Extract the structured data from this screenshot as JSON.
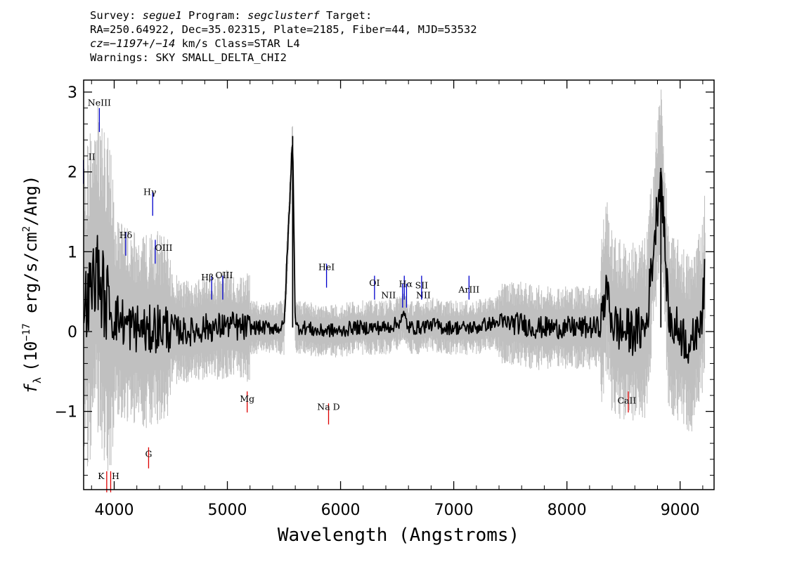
{
  "header": {
    "survey_label": "Survey:",
    "survey": "segue1",
    "program_label": "Program:",
    "program": "segclusterf",
    "target_label": "Target:",
    "line2": "RA=250.64922, Dec=35.02315, Plate=2185, Fiber=44, MJD=53532",
    "cz_label": "cz=",
    "cz_value": "−1197",
    "cz_pm": "+/−",
    "cz_err": "14",
    "cz_tail": " km/s Class=STAR L4",
    "line4": "Warnings: SKY SMALL_DELTA_CHI2"
  },
  "chart_data": {
    "type": "line",
    "xlabel": "Wavelength (Angstroms)",
    "ylabel": "f_λ (10^-17 erg/s/cm^2/Ang)",
    "ylabel_parts": {
      "f": "f",
      "sub": "λ",
      "pre": "(10",
      "exp": "−17",
      "mid": " erg/s/cm",
      "exp2": "2",
      "post": "/Ang)"
    },
    "xlim": [
      3730,
      9300
    ],
    "ylim": [
      -1.98,
      3.15
    ],
    "xticks": [
      4000,
      5000,
      6000,
      7000,
      8000,
      9000
    ],
    "xtick_labels": [
      "4000",
      "5000",
      "6000",
      "7000",
      "8000",
      "9000"
    ],
    "yticks": [
      -1,
      0,
      1,
      2,
      3
    ],
    "ytick_labels": [
      "−1",
      "0",
      "1",
      "2",
      "3"
    ],
    "grid": false,
    "colors": {
      "spectrum": "#000000",
      "noise": "#c0c0c0",
      "emission": "#0000cc",
      "absorption": "#dd0000"
    },
    "series": [
      {
        "x": [
          3760,
          3800,
          3840,
          3880,
          3920,
          3960,
          4000,
          4050,
          4100,
          4150,
          4200,
          4250,
          4300,
          4350,
          4400,
          4500,
          4600,
          4700,
          4800,
          4900,
          5000,
          5100,
          5200,
          5300,
          5400,
          5500,
          5577,
          5600,
          5700,
          5800,
          5890,
          6000,
          6100,
          6200,
          6300,
          6400,
          6500,
          6563,
          6600,
          6700,
          6800,
          6900,
          7000,
          7100,
          7200,
          7300,
          7400,
          7500,
          7600,
          7700,
          7800,
          7900,
          8000,
          8100,
          8200,
          8300,
          8350,
          8400,
          8500,
          8600,
          8700,
          8830,
          8900,
          9000,
          9100,
          9150,
          9200,
          9220
        ],
        "y": [
          0.3,
          0.5,
          0.9,
          0.6,
          0.4,
          0.3,
          0.2,
          0.15,
          0.1,
          0.05,
          0.05,
          0.0,
          0.0,
          0.05,
          0.05,
          0.05,
          0.0,
          0.0,
          0.05,
          0.05,
          0.1,
          0.05,
          0.05,
          0.05,
          0.05,
          0.05,
          2.45,
          0.05,
          0.05,
          0.0,
          0.02,
          0.0,
          0.05,
          0.05,
          0.05,
          0.05,
          0.1,
          0.2,
          0.05,
          0.05,
          0.1,
          0.05,
          0.05,
          0.05,
          0.05,
          0.1,
          0.1,
          0.1,
          0.1,
          0.05,
          0.05,
          0.05,
          0.05,
          0.05,
          0.05,
          0.05,
          0.6,
          0.1,
          0.0,
          0.0,
          0.05,
          2.05,
          0.1,
          0.0,
          -0.2,
          0.1,
          0.3,
          0.7
        ]
      }
    ],
    "annotations": [
      {
        "label": "NeIII",
        "x": 3869,
        "y": 2.5,
        "color": "emission",
        "ty": 2.83,
        "dx": 0
      },
      {
        "label": "II",
        "x": 3728,
        "y": 1.85,
        "color": "emission",
        "ty": 2.15,
        "dx": 12
      },
      {
        "label": "Hγ",
        "x": 4340,
        "y": 1.45,
        "color": "emission",
        "ty": 1.71,
        "dx": -4
      },
      {
        "label": "Hδ",
        "x": 4102,
        "y": 0.95,
        "color": "emission",
        "ty": 1.17,
        "dx": 0
      },
      {
        "label": "OIII",
        "x": 4363,
        "y": 0.85,
        "color": "emission",
        "ty": 1.01,
        "dx": 12
      },
      {
        "label": "Hβ",
        "x": 4861,
        "y": 0.4,
        "color": "emission",
        "ty": 0.64,
        "dx": -6
      },
      {
        "label": "OIII",
        "x": 4959,
        "y": 0.4,
        "color": "emission",
        "ty": 0.67,
        "dx": 2
      },
      {
        "label": "HeI",
        "x": 5876,
        "y": 0.55,
        "color": "emission",
        "ty": 0.77,
        "dx": 0
      },
      {
        "label": "OI",
        "x": 6300,
        "y": 0.4,
        "color": "emission",
        "ty": 0.57,
        "dx": 0
      },
      {
        "label": "NII",
        "x": 6548,
        "y": 0.3,
        "color": "emission",
        "ty": 0.42,
        "dx": -20
      },
      {
        "label": "Hα",
        "x": 6563,
        "y": 0.4,
        "color": "emission",
        "ty": 0.56,
        "dx": 2
      },
      {
        "label": "NII",
        "x": 6583,
        "y": 0.3,
        "color": "emission",
        "ty": 0.42,
        "dx": 24
      },
      {
        "label": "SII",
        "x": 6716,
        "y": 0.4,
        "color": "emission",
        "ty": 0.54,
        "dx": 0
      },
      {
        "label": "ArIII",
        "x": 7135,
        "y": 0.4,
        "color": "emission",
        "ty": 0.49,
        "dx": 0
      },
      {
        "label": "Mg",
        "x": 5175,
        "y": -0.75,
        "color": "absorption",
        "ty": -0.88,
        "dx": 0
      },
      {
        "label": "Na  D",
        "x": 5894,
        "y": -0.9,
        "color": "absorption",
        "ty": -0.98,
        "dx": 0
      },
      {
        "label": "G",
        "x": 4304,
        "y": -1.45,
        "color": "absorption",
        "ty": -1.57,
        "dx": 0
      },
      {
        "label": "K",
        "x": 3934,
        "y": -1.75,
        "color": "absorption",
        "ty": -1.85,
        "dx": -8
      },
      {
        "label": "H",
        "x": 3969,
        "y": -1.75,
        "color": "absorption",
        "ty": -1.85,
        "dx": 7
      },
      {
        "label": "CaII",
        "x": 8542,
        "y": -0.75,
        "color": "absorption",
        "ty": -0.9,
        "dx": -2
      }
    ]
  }
}
